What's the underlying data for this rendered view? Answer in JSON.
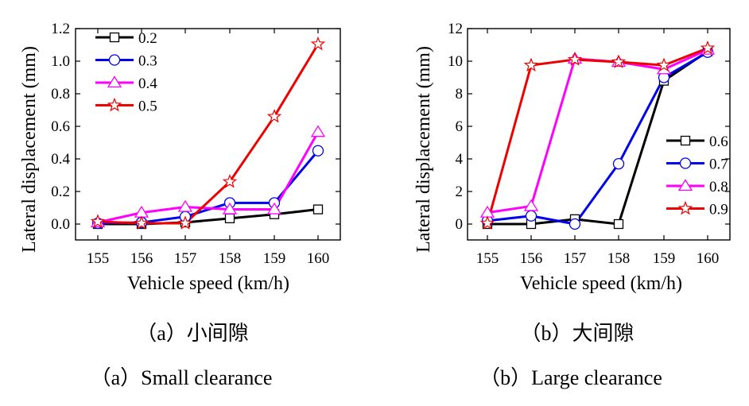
{
  "chart_data": [
    {
      "type": "line",
      "xlabel": "Vehicle speed (km/h)",
      "ylabel": "Lateral displacement (mm)",
      "x": [
        155,
        156,
        157,
        158,
        159,
        160
      ],
      "ylim": [
        -0.1,
        1.2
      ],
      "yticks": [
        0.0,
        0.2,
        0.4,
        0.6,
        0.8,
        1.0,
        1.2
      ],
      "ytick_labels": [
        "0.0",
        "0.2",
        "0.4",
        "0.6",
        "0.8",
        "1.0",
        "1.2"
      ],
      "xticks": [
        155,
        156,
        157,
        158,
        159,
        160
      ],
      "legend_position": "top-left",
      "caption_cn": "（a）小间隙",
      "caption_en": "（a）Small clearance",
      "series": [
        {
          "name": "0.2",
          "marker": "square",
          "color": "#000000",
          "values": [
            0.0,
            0.0,
            0.01,
            0.035,
            0.06,
            0.09
          ]
        },
        {
          "name": "0.3",
          "marker": "circle",
          "color": "#0000ee",
          "values": [
            0.005,
            0.01,
            0.045,
            0.13,
            0.13,
            0.45
          ]
        },
        {
          "name": "0.4",
          "marker": "triangle",
          "color": "#ff00ff",
          "values": [
            0.01,
            0.07,
            0.105,
            0.09,
            0.09,
            0.565
          ]
        },
        {
          "name": "0.5",
          "marker": "star",
          "color": "#ee0000",
          "values": [
            0.015,
            0.005,
            0.005,
            0.26,
            0.66,
            1.105
          ]
        }
      ]
    },
    {
      "type": "line",
      "xlabel": "Vehicle speed (km/h)",
      "ylabel": "Lateral displacement (mm)",
      "x": [
        155,
        156,
        157,
        158,
        159,
        160
      ],
      "ylim": [
        -1,
        12
      ],
      "yticks": [
        0,
        2,
        4,
        6,
        8,
        10,
        12
      ],
      "ytick_labels": [
        "0",
        "2",
        "4",
        "6",
        "8",
        "10",
        "12"
      ],
      "xticks": [
        155,
        156,
        157,
        158,
        159,
        160
      ],
      "legend_position": "bottom-right",
      "caption_cn": "（b）大间隙",
      "caption_en": "（b）Large clearance",
      "series": [
        {
          "name": "0.6",
          "marker": "square",
          "color": "#000000",
          "values": [
            0.0,
            0.0,
            0.3,
            0.0,
            8.8,
            10.6
          ]
        },
        {
          "name": "0.7",
          "marker": "circle",
          "color": "#0000ee",
          "values": [
            0.2,
            0.5,
            0.0,
            3.7,
            9.0,
            10.55
          ]
        },
        {
          "name": "0.8",
          "marker": "triangle",
          "color": "#ff00ff",
          "values": [
            0.7,
            1.1,
            10.15,
            9.95,
            9.5,
            10.7
          ]
        },
        {
          "name": "0.9",
          "marker": "star",
          "color": "#ee0000",
          "values": [
            0.05,
            9.75,
            10.1,
            9.95,
            9.75,
            10.8
          ]
        }
      ]
    }
  ]
}
